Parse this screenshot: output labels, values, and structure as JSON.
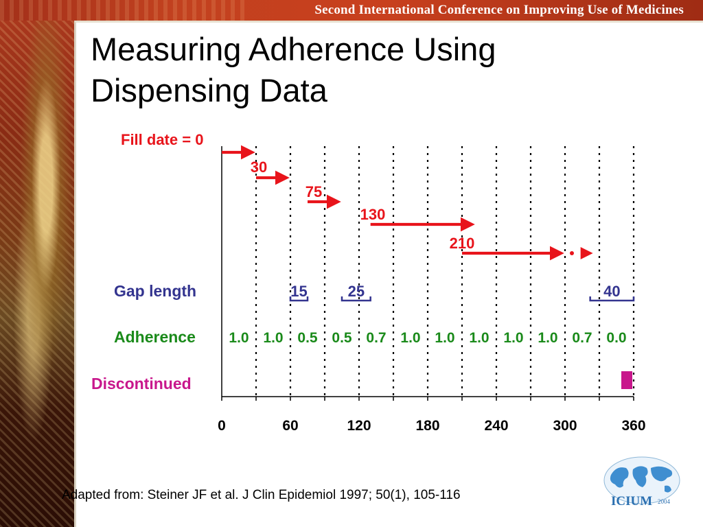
{
  "header": {
    "conference_title": "Second International Conference on Improving Use of Medicines"
  },
  "slide": {
    "title": "Measuring Adherence Using Dispensing Data"
  },
  "labels": {
    "fill_date": "Fill date = 0",
    "gap_length": "Gap length",
    "adherence": "Adherence",
    "discontinued": "Discontinued"
  },
  "colors": {
    "fill_arrow": "#e8141b",
    "gap": "#33348f",
    "adherence": "#1a8a1a",
    "discontinued": "#c8178c",
    "axis": "#000000"
  },
  "chart_data": {
    "type": "timeline",
    "x_ticks": [
      "0",
      "60",
      "120",
      "180",
      "240",
      "300",
      "360"
    ],
    "xlim": [
      0,
      360
    ],
    "gridline_interval": 30,
    "fills": [
      {
        "label": "0",
        "start": 0,
        "end": 30
      },
      {
        "label": "30",
        "start": 30,
        "end": 60
      },
      {
        "label": "75",
        "start": 75,
        "end": 105
      },
      {
        "label": "130",
        "start": 130,
        "end": 222
      },
      {
        "label": "210",
        "start": 210,
        "end": 300,
        "continues_to": 322
      }
    ],
    "gaps": [
      {
        "label": "15",
        "start": 60,
        "end": 75
      },
      {
        "label": "25",
        "start": 105,
        "end": 130
      },
      {
        "label": "40",
        "start": 322,
        "end": 360
      }
    ],
    "adherence": [
      "1.0",
      "1.0",
      "0.5",
      "0.5",
      "0.7",
      "1.0",
      "1.0",
      "1.0",
      "1.0",
      "1.0",
      "0.7",
      "0.0"
    ],
    "discontinued": {
      "start": 348,
      "end": 360
    }
  },
  "citation": "Adapted from: Steiner JF et al.  J Clin Epidemiol  1997; 50(1), 105-116",
  "logo": {
    "text": "ICIUM",
    "year": "2004"
  }
}
